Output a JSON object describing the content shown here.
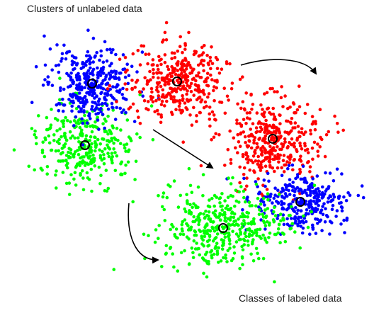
{
  "labels": {
    "top": "Clusters of unlabeled data",
    "bottom": "Classes of labeled data"
  },
  "colors": {
    "blue": "#0000ff",
    "red": "#ff0000",
    "green": "#00ff00",
    "centroid": "#000000",
    "arrow": "#000000",
    "text": "#222222"
  },
  "clusters": [
    {
      "id": "blue-cluster",
      "group": "unlabeled",
      "color": "blue"
    },
    {
      "id": "red-cluster",
      "group": "unlabeled",
      "color": "red"
    },
    {
      "id": "green-cluster",
      "group": "unlabeled",
      "color": "green"
    },
    {
      "id": "red-class",
      "group": "labeled",
      "color": "red"
    },
    {
      "id": "blue-class",
      "group": "labeled",
      "color": "blue"
    },
    {
      "id": "green-class",
      "group": "labeled",
      "color": "green"
    }
  ],
  "arrows": [
    "red-to-red-class",
    "red-to-labeled-center",
    "green-to-green-class"
  ]
}
